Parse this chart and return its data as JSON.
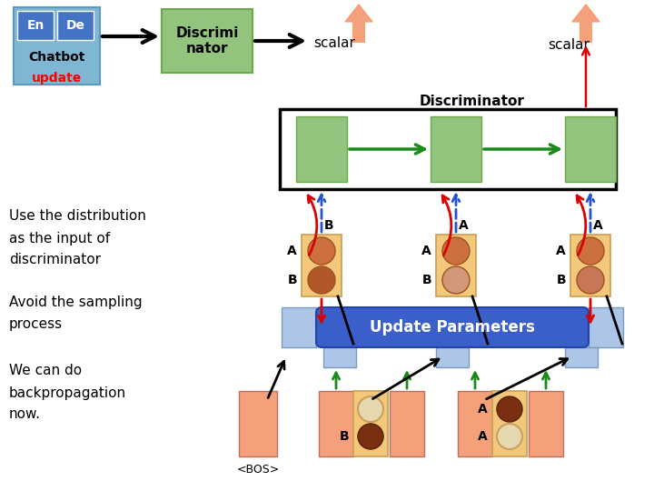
{
  "bg_color": "#ffffff",
  "en_de_box_color": "#7eb6d4",
  "en_de_inner_color": "#4472c4",
  "discriminator_box_color": "#93c47d",
  "discriminator_border": "#6aaa4c",
  "update_params_color": "#3a5fc8",
  "update_params_text": "Update Parameters",
  "discriminator_label": "Discriminator",
  "scalar_text": "scalar",
  "chatbot_text": "Chatbot",
  "update_text": "update",
  "en_text": "En",
  "de_text": "De",
  "discriminator_box_text": "Discrimi\nnator",
  "left_text1": "Use the distribution",
  "left_text2": "as the input of",
  "left_text3": "discriminator",
  "left_text4": "Avoid the sampling",
  "left_text5": "process",
  "left_text6": "We can do",
  "left_text7": "backpropagation",
  "left_text8": "now.",
  "bos_text": "<BOS>",
  "rnn_box_color": "#93c47d",
  "token_box_color": "#f4c87a",
  "pink_box_color": "#f4a07a",
  "light_blue_box_color": "#adc6e8",
  "green_arrow_color": "#1a8a1a",
  "red_color": "#dd0000",
  "blue_dashed_color": "#2255cc",
  "salmon_arrow_color": "#f4a07a"
}
